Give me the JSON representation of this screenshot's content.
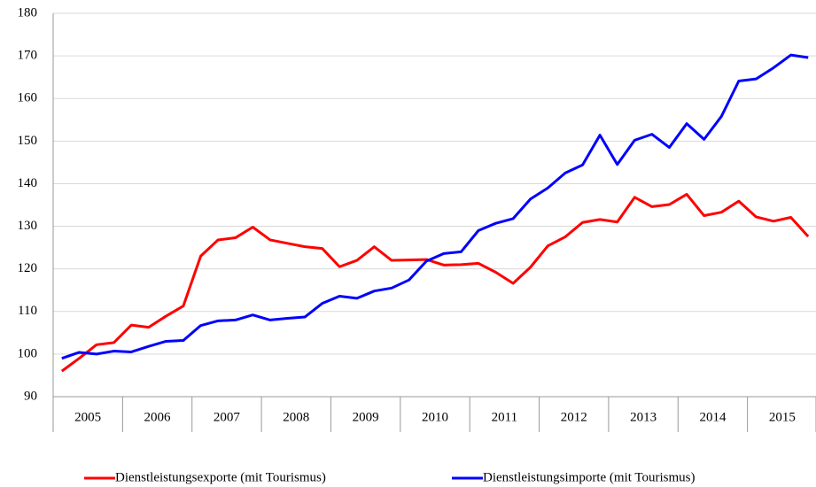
{
  "chart_data": {
    "type": "line",
    "categories": [
      "2005",
      null,
      null,
      null,
      "2006",
      null,
      null,
      null,
      "2007",
      null,
      null,
      null,
      "2008",
      null,
      null,
      null,
      "2009",
      null,
      null,
      null,
      "2010",
      null,
      null,
      null,
      "2011",
      null,
      null,
      null,
      "2012",
      null,
      null,
      null,
      "2013",
      null,
      null,
      null,
      "2014",
      null,
      null,
      null,
      "2015",
      null,
      null,
      null
    ],
    "series": [
      {
        "name": "Dienstleistungsexporte (mit Tourismus)",
        "color": "#ff0000",
        "values": [
          96.0,
          99.0,
          102.2,
          102.7,
          106.8,
          106.3,
          108.9,
          111.3,
          123.0,
          126.8,
          127.3,
          129.8,
          126.8,
          126.0,
          125.2,
          124.8,
          120.5,
          122.0,
          125.2,
          122.0,
          122.1,
          122.2,
          120.9,
          121.0,
          121.3,
          119.2,
          116.6,
          120.4,
          125.4,
          127.5,
          130.9,
          131.6,
          131.0,
          136.8,
          134.6,
          135.1,
          137.5,
          132.5,
          133.3,
          135.9,
          132.2,
          131.2,
          132.1,
          127.6
        ]
      },
      {
        "name": "Dienstleistungsimporte (mit Tourismus)",
        "color": "#0000ff",
        "values": [
          99.0,
          100.4,
          100.0,
          100.7,
          100.5,
          101.8,
          103.0,
          103.2,
          106.7,
          107.8,
          108.0,
          109.2,
          108.0,
          108.4,
          108.7,
          111.9,
          113.6,
          113.1,
          114.8,
          115.5,
          117.4,
          121.8,
          123.6,
          124.0,
          129.0,
          130.7,
          131.8,
          136.4,
          139.0,
          142.5,
          144.4,
          151.4,
          144.5,
          150.2,
          151.6,
          148.5,
          154.1,
          150.4,
          155.8,
          164.1,
          164.6,
          167.2,
          170.2,
          169.6
        ]
      }
    ],
    "ylim": [
      90,
      180
    ],
    "yticks": [
      90,
      100,
      110,
      120,
      130,
      140,
      150,
      160,
      170,
      180
    ],
    "grid": true,
    "legend": "bottom"
  }
}
